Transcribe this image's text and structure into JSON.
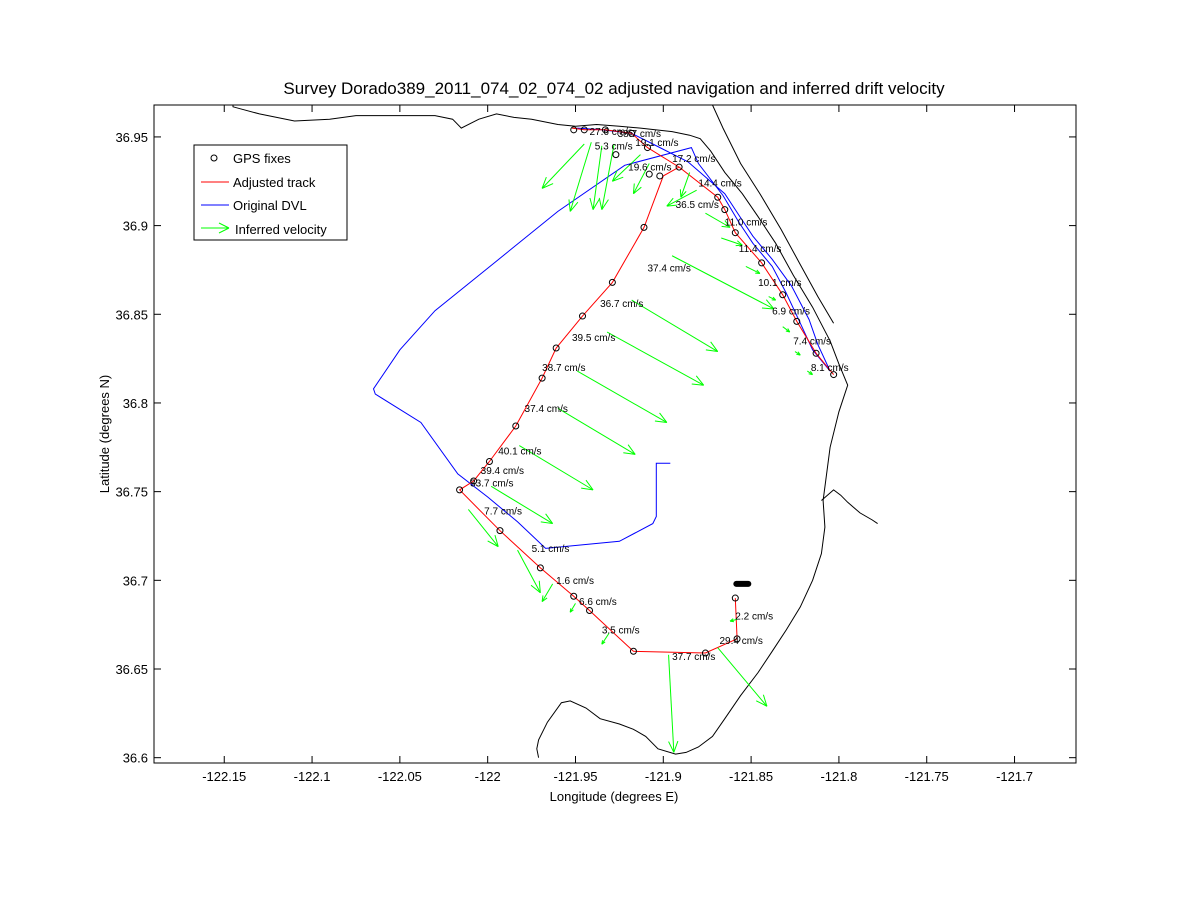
{
  "chart_data": {
    "type": "scatter",
    "title": "Survey Dorado389_2011_074_02_074_02 adjusted navigation and inferred drift velocity",
    "xlabel": "Longitude (degrees E)",
    "ylabel": "Latitude (degrees N)",
    "xlim": [
      -122.19,
      -121.665
    ],
    "ylim": [
      36.597,
      36.968
    ],
    "xticks": [
      -122.15,
      -122.1,
      -122.05,
      -122.0,
      -121.95,
      -121.9,
      -121.85,
      -121.8,
      -121.75,
      -121.7
    ],
    "xtick_labels": [
      "-122.15",
      "-122.1",
      "-122.05",
      "-122",
      "-121.95",
      "-121.9",
      "-121.85",
      "-121.8",
      "-121.75",
      "-121.7"
    ],
    "yticks": [
      36.6,
      36.65,
      36.7,
      36.75,
      36.8,
      36.85,
      36.9,
      36.95
    ],
    "ytick_labels": [
      "36.6",
      "36.65",
      "36.7",
      "36.75",
      "36.8",
      "36.85",
      "36.9",
      "36.95"
    ],
    "grid": false,
    "legend": {
      "position": "top-left",
      "entries": [
        {
          "label": "GPS fixes",
          "color": "#000000",
          "marker": "circle"
        },
        {
          "label": "Adjusted track",
          "color": "#ff0000",
          "marker": "line"
        },
        {
          "label": "Original DVL",
          "color": "#0000ff",
          "marker": "line"
        },
        {
          "label": "Inferred velocity",
          "color": "#00ff00",
          "marker": "arrow"
        }
      ]
    },
    "colors": {
      "gps": "#000000",
      "track": "#ff0000",
      "dvl": "#0000ff",
      "velocity": "#00ff00",
      "coast": "#000000"
    },
    "gps_fixes": [
      [
        -121.951,
        36.954
      ],
      [
        -121.945,
        36.954
      ],
      [
        -121.933,
        36.954
      ],
      [
        -121.918,
        36.952
      ],
      [
        -121.927,
        36.94
      ],
      [
        -121.909,
        36.944
      ],
      [
        -121.908,
        36.929
      ],
      [
        -121.902,
        36.928
      ],
      [
        -121.891,
        36.933
      ],
      [
        -121.869,
        36.916
      ],
      [
        -121.865,
        36.909
      ],
      [
        -121.859,
        36.896
      ],
      [
        -121.844,
        36.879
      ],
      [
        -121.832,
        36.861
      ],
      [
        -121.824,
        36.846
      ],
      [
        -121.813,
        36.828
      ],
      [
        -121.803,
        36.816
      ],
      [
        -121.911,
        36.899
      ],
      [
        -121.929,
        36.868
      ],
      [
        -121.946,
        36.849
      ],
      [
        -121.961,
        36.831
      ],
      [
        -121.969,
        36.814
      ],
      [
        -121.984,
        36.787
      ],
      [
        -121.999,
        36.767
      ],
      [
        -122.008,
        36.756
      ],
      [
        -122.016,
        36.751
      ],
      [
        -121.993,
        36.728
      ],
      [
        -121.97,
        36.707
      ],
      [
        -121.951,
        36.691
      ],
      [
        -121.942,
        36.683
      ],
      [
        -121.917,
        36.66
      ],
      [
        -121.876,
        36.659
      ],
      [
        -121.858,
        36.667
      ],
      [
        -121.859,
        36.69
      ]
    ],
    "adjusted_track": [
      [
        -121.952,
        36.955
      ],
      [
        -121.945,
        36.954
      ],
      [
        -121.933,
        36.954
      ],
      [
        -121.918,
        36.952
      ],
      [
        -121.909,
        36.944
      ],
      [
        -121.891,
        36.933
      ],
      [
        -121.869,
        36.916
      ],
      [
        -121.865,
        36.909
      ],
      [
        -121.859,
        36.896
      ],
      [
        -121.844,
        36.879
      ],
      [
        -121.832,
        36.861
      ],
      [
        -121.824,
        36.846
      ],
      [
        -121.813,
        36.828
      ],
      [
        -121.803,
        36.816
      ],
      [
        -121.813,
        36.828
      ],
      [
        -121.824,
        36.846
      ],
      [
        -121.832,
        36.861
      ],
      [
        -121.844,
        36.879
      ],
      [
        -121.859,
        36.896
      ],
      [
        -121.865,
        36.909
      ],
      [
        -121.869,
        36.916
      ],
      [
        -121.891,
        36.933
      ],
      [
        -121.9,
        36.928
      ],
      [
        -121.911,
        36.899
      ],
      [
        -121.929,
        36.868
      ],
      [
        -121.946,
        36.849
      ],
      [
        -121.961,
        36.831
      ],
      [
        -121.969,
        36.814
      ],
      [
        -121.984,
        36.787
      ],
      [
        -121.999,
        36.767
      ],
      [
        -122.008,
        36.756
      ],
      [
        -122.016,
        36.751
      ],
      [
        -121.993,
        36.728
      ],
      [
        -121.97,
        36.707
      ],
      [
        -121.951,
        36.691
      ],
      [
        -121.942,
        36.683
      ],
      [
        -121.917,
        36.66
      ],
      [
        -121.876,
        36.659
      ],
      [
        -121.858,
        36.667
      ],
      [
        -121.859,
        36.69
      ]
    ],
    "original_dvl": [
      [
        -121.949,
        36.955
      ],
      [
        -121.935,
        36.954
      ],
      [
        -121.918,
        36.952
      ],
      [
        -121.906,
        36.946
      ],
      [
        -121.886,
        36.936
      ],
      [
        -121.865,
        36.918
      ],
      [
        -121.857,
        36.906
      ],
      [
        -121.849,
        36.894
      ],
      [
        -121.838,
        36.881
      ],
      [
        -121.827,
        36.866
      ],
      [
        -121.817,
        36.847
      ],
      [
        -121.812,
        36.833
      ],
      [
        -121.805,
        36.818
      ],
      [
        -121.815,
        36.83
      ],
      [
        -121.822,
        36.845
      ],
      [
        -121.83,
        36.862
      ],
      [
        -121.838,
        36.877
      ],
      [
        -121.849,
        36.89
      ],
      [
        -121.857,
        36.902
      ],
      [
        -121.866,
        36.917
      ],
      [
        -121.88,
        36.935
      ],
      [
        -121.884,
        36.944
      ],
      [
        -121.922,
        36.934
      ],
      [
        -121.96,
        36.908
      ],
      [
        -121.995,
        36.88
      ],
      [
        -122.03,
        36.852
      ],
      [
        -122.05,
        36.83
      ],
      [
        -122.065,
        36.808
      ],
      [
        -122.064,
        36.805
      ],
      [
        -122.038,
        36.789
      ],
      [
        -122.017,
        36.76
      ],
      [
        -122.0,
        36.747
      ],
      [
        -121.983,
        36.733
      ],
      [
        -121.967,
        36.718
      ],
      [
        -121.925,
        36.722
      ],
      [
        -121.906,
        36.732
      ],
      [
        -121.904,
        36.736
      ],
      [
        -121.904,
        36.766
      ],
      [
        -121.896,
        36.766
      ]
    ],
    "velocity_arrows": [
      {
        "x": -121.945,
        "y": 36.946,
        "dx": -0.024,
        "dy": -0.025
      },
      {
        "x": -121.941,
        "y": 36.947,
        "dx": -0.012,
        "dy": -0.039
      },
      {
        "x": -121.935,
        "y": 36.945,
        "dx": -0.005,
        "dy": -0.036
      },
      {
        "x": -121.928,
        "y": 36.946,
        "dx": -0.007,
        "dy": -0.037
      },
      {
        "x": -121.913,
        "y": 36.94,
        "dx": -0.016,
        "dy": -0.015
      },
      {
        "x": -121.908,
        "y": 36.935,
        "dx": -0.009,
        "dy": -0.017
      },
      {
        "x": -121.885,
        "y": 36.93,
        "dx": -0.005,
        "dy": -0.014
      },
      {
        "x": -121.881,
        "y": 36.92,
        "dx": -0.017,
        "dy": -0.009
      },
      {
        "x": -121.876,
        "y": 36.907,
        "dx": 0.014,
        "dy": -0.008
      },
      {
        "x": -121.867,
        "y": 36.893,
        "dx": 0.012,
        "dy": -0.004
      },
      {
        "x": -121.853,
        "y": 36.877,
        "dx": 0.008,
        "dy": -0.004
      },
      {
        "x": -121.84,
        "y": 36.86,
        "dx": 0.004,
        "dy": -0.002
      },
      {
        "x": -121.832,
        "y": 36.843,
        "dx": 0.004,
        "dy": -0.003
      },
      {
        "x": -121.825,
        "y": 36.829,
        "dx": 0.003,
        "dy": -0.002
      },
      {
        "x": -121.818,
        "y": 36.818,
        "dx": 0.003,
        "dy": -0.002
      },
      {
        "x": -121.895,
        "y": 36.883,
        "dx": 0.058,
        "dy": -0.03
      },
      {
        "x": -121.918,
        "y": 36.858,
        "dx": 0.049,
        "dy": -0.029
      },
      {
        "x": -121.932,
        "y": 36.84,
        "dx": 0.055,
        "dy": -0.03
      },
      {
        "x": -121.949,
        "y": 36.818,
        "dx": 0.051,
        "dy": -0.029
      },
      {
        "x": -121.96,
        "y": 36.797,
        "dx": 0.044,
        "dy": -0.026
      },
      {
        "x": -121.982,
        "y": 36.776,
        "dx": 0.042,
        "dy": -0.025
      },
      {
        "x": -121.998,
        "y": 36.753,
        "dx": 0.035,
        "dy": -0.021
      },
      {
        "x": -122.011,
        "y": 36.74,
        "dx": 0.017,
        "dy": -0.021
      },
      {
        "x": -121.983,
        "y": 36.717,
        "dx": 0.013,
        "dy": -0.024
      },
      {
        "x": -121.963,
        "y": 36.698,
        "dx": -0.006,
        "dy": -0.01
      },
      {
        "x": -121.95,
        "y": 36.687,
        "dx": -0.003,
        "dy": -0.005
      },
      {
        "x": -121.931,
        "y": 36.67,
        "dx": -0.004,
        "dy": -0.006
      },
      {
        "x": -121.897,
        "y": 36.658,
        "dx": 0.003,
        "dy": -0.055
      },
      {
        "x": -121.869,
        "y": 36.662,
        "dx": 0.028,
        "dy": -0.033
      },
      {
        "x": -121.858,
        "y": 36.678,
        "dx": -0.004,
        "dy": -0.001
      }
    ],
    "velocity_labels": [
      {
        "text": "27.6 cm/s",
        "x": -121.942,
        "y": 36.951
      },
      {
        "text": "38.7 cm/s",
        "x": -121.926,
        "y": 36.95
      },
      {
        "text": "5.3 cm/s",
        "x": -121.939,
        "y": 36.943
      },
      {
        "text": "19.1 cm/s",
        "x": -121.916,
        "y": 36.945
      },
      {
        "text": "17.2 cm/s",
        "x": -121.895,
        "y": 36.936
      },
      {
        "text": "19.6 cm/s",
        "x": -121.92,
        "y": 36.931
      },
      {
        "text": "14.4 cm/s",
        "x": -121.88,
        "y": 36.922
      },
      {
        "text": "36.5 cm/s",
        "x": -121.893,
        "y": 36.91
      },
      {
        "text": "11.0 cm/s",
        "x": -121.865,
        "y": 36.9
      },
      {
        "text": "11.4 cm/s",
        "x": -121.857,
        "y": 36.885
      },
      {
        "text": "10.1 cm/s",
        "x": -121.846,
        "y": 36.866
      },
      {
        "text": "6.9 cm/s",
        "x": -121.838,
        "y": 36.85
      },
      {
        "text": "7.4 cm/s",
        "x": -121.826,
        "y": 36.833
      },
      {
        "text": "8.1 cm/s",
        "x": -121.816,
        "y": 36.818
      },
      {
        "text": "37.4 cm/s",
        "x": -121.909,
        "y": 36.874
      },
      {
        "text": "36.7 cm/s",
        "x": -121.936,
        "y": 36.854
      },
      {
        "text": "39.5 cm/s",
        "x": -121.952,
        "y": 36.835
      },
      {
        "text": "38.7 cm/s",
        "x": -121.969,
        "y": 36.818
      },
      {
        "text": "37.4 cm/s",
        "x": -121.979,
        "y": 36.795
      },
      {
        "text": "40.1 cm/s",
        "x": -121.994,
        "y": 36.771
      },
      {
        "text": "39.4 cm/s",
        "x": -122.004,
        "y": 36.76
      },
      {
        "text": "33.7 cm/s",
        "x": -122.01,
        "y": 36.753
      },
      {
        "text": "7.7 cm/s",
        "x": -122.002,
        "y": 36.737
      },
      {
        "text": "5.1 cm/s",
        "x": -121.975,
        "y": 36.716
      },
      {
        "text": "1.6 cm/s",
        "x": -121.961,
        "y": 36.698
      },
      {
        "text": "6.6 cm/s",
        "x": -121.948,
        "y": 36.686
      },
      {
        "text": "3.5 cm/s",
        "x": -121.935,
        "y": 36.67
      },
      {
        "text": "37.7 cm/s",
        "x": -121.895,
        "y": 36.655
      },
      {
        "text": "29.4 cm/s",
        "x": -121.868,
        "y": 36.664
      },
      {
        "text": "2.2 cm/s",
        "x": -121.859,
        "y": 36.678
      }
    ],
    "coastline": [
      [
        [
          -122.145,
          36.968
        ],
        [
          -122.145,
          36.967
        ],
        [
          -122.13,
          36.963
        ],
        [
          -122.11,
          36.959
        ],
        [
          -122.09,
          36.96
        ],
        [
          -122.075,
          36.962
        ],
        [
          -122.06,
          36.962
        ],
        [
          -122.045,
          36.962
        ],
        [
          -122.03,
          36.962
        ],
        [
          -122.02,
          36.96
        ],
        [
          -122.015,
          36.955
        ],
        [
          -122.005,
          36.96
        ],
        [
          -121.995,
          36.963
        ],
        [
          -121.985,
          36.961
        ],
        [
          -121.975,
          36.96
        ],
        [
          -121.96,
          36.957
        ],
        [
          -121.95,
          36.956
        ],
        [
          -121.938,
          36.957
        ],
        [
          -121.925,
          36.956
        ],
        [
          -121.913,
          36.955
        ],
        [
          -121.895,
          36.953
        ],
        [
          -121.885,
          36.951
        ],
        [
          -121.879,
          36.949
        ],
        [
          -121.873,
          36.942
        ],
        [
          -121.865,
          36.93
        ],
        [
          -121.855,
          36.918
        ],
        [
          -121.846,
          36.905
        ],
        [
          -121.836,
          36.89
        ],
        [
          -121.826,
          36.872
        ],
        [
          -121.815,
          36.854
        ],
        [
          -121.805,
          36.835
        ],
        [
          -121.8,
          36.822
        ],
        [
          -121.795,
          36.81
        ],
        [
          -121.8,
          36.795
        ],
        [
          -121.805,
          36.775
        ],
        [
          -121.807,
          36.76
        ],
        [
          -121.809,
          36.745
        ],
        [
          -121.808,
          36.73
        ],
        [
          -121.81,
          36.715
        ],
        [
          -121.815,
          36.7
        ],
        [
          -121.822,
          36.685
        ],
        [
          -121.83,
          36.672
        ],
        [
          -121.838,
          36.66
        ],
        [
          -121.846,
          36.648
        ],
        [
          -121.856,
          36.635
        ],
        [
          -121.865,
          36.622
        ],
        [
          -121.872,
          36.612
        ],
        [
          -121.88,
          36.606
        ],
        [
          -121.887,
          36.603
        ],
        [
          -121.893,
          36.602
        ],
        [
          -121.903,
          36.605
        ],
        [
          -121.91,
          36.612
        ],
        [
          -121.917,
          36.616
        ],
        [
          -121.925,
          36.619
        ],
        [
          -121.936,
          36.622
        ],
        [
          -121.944,
          36.628
        ],
        [
          -121.953,
          36.632
        ],
        [
          -121.958,
          36.631
        ],
        [
          -121.966,
          36.62
        ],
        [
          -121.971,
          36.61
        ],
        [
          -121.972,
          36.605
        ],
        [
          -121.971,
          36.6
        ]
      ],
      [
        [
          -121.872,
          36.968
        ],
        [
          -121.866,
          36.955
        ],
        [
          -121.856,
          36.935
        ],
        [
          -121.845,
          36.918
        ],
        [
          -121.833,
          36.898
        ],
        [
          -121.822,
          36.878
        ],
        [
          -121.812,
          36.86
        ],
        [
          -121.803,
          36.845
        ]
      ],
      [
        [
          -121.81,
          36.745
        ],
        [
          -121.803,
          36.751
        ],
        [
          -121.799,
          36.748
        ],
        [
          -121.795,
          36.744
        ],
        [
          -121.788,
          36.738
        ],
        [
          -121.781,
          36.734
        ],
        [
          -121.778,
          36.732
        ]
      ]
    ],
    "end_marker": {
      "x": -121.855,
      "y": 36.698
    }
  }
}
